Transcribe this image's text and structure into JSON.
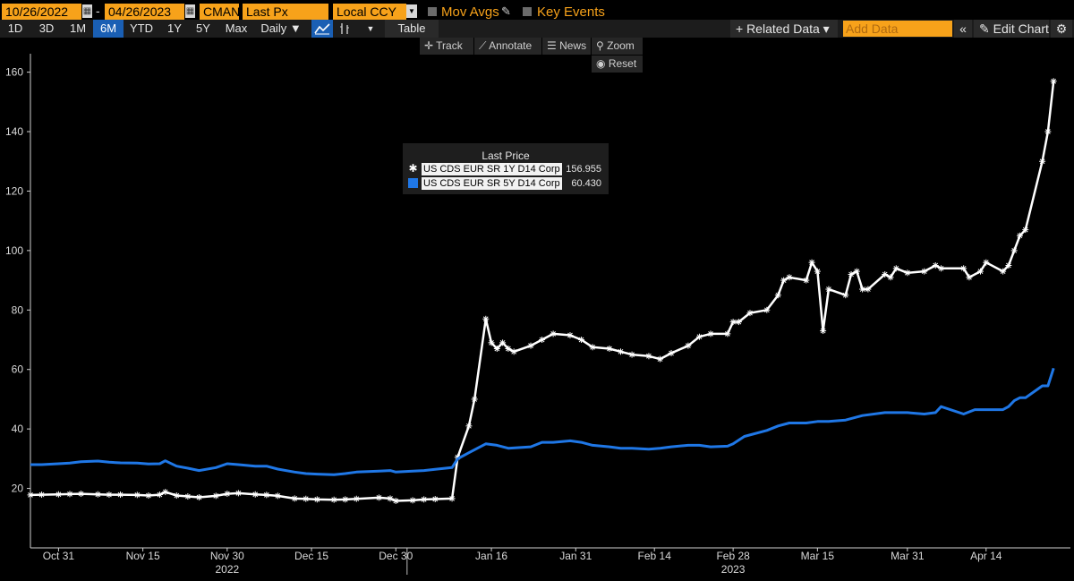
{
  "toolbar": {
    "start_date": "10/26/2022",
    "date_separator": "-",
    "end_date": "04/26/2023",
    "field_cman": "CMAN",
    "field_price": "Last Px",
    "currency": "Local CCY",
    "mov_avgs": "Mov Avgs",
    "key_events": "Key Events"
  },
  "range_buttons": [
    "1D",
    "3D",
    "1M",
    "6M",
    "YTD",
    "1Y",
    "5Y",
    "Max"
  ],
  "active_range": "6M",
  "frequency": "Daily ▼",
  "table_label": "Table",
  "right_toolbar": {
    "related_data": "+ Related Data ▾",
    "add_data_placeholder": "Add Data",
    "collapse": "«",
    "edit_chart": "✎ Edit Chart"
  },
  "chart_tools": {
    "track": "Track",
    "annotate": "Annotate",
    "news": "News",
    "zoom": "Zoom",
    "reset": "Reset"
  },
  "colors": {
    "accent": "#f7a21a",
    "series_1": "#ffffff",
    "series_2": "#1f77e6",
    "background": "#000000",
    "active_button": "#1a5fb4"
  },
  "chart_data": {
    "type": "line",
    "legend_title": "Last Price",
    "legend_position": "top-center",
    "ylim": [
      0,
      165
    ],
    "y_ticks": [
      20,
      40,
      60,
      80,
      100,
      120,
      140,
      160
    ],
    "x_ticks": [
      {
        "date": "2022-10-31",
        "label": "Oct 31"
      },
      {
        "date": "2022-11-15",
        "label": "Nov 15"
      },
      {
        "date": "2022-11-30",
        "label": "Nov 30"
      },
      {
        "date": "2022-12-15",
        "label": "Dec 15"
      },
      {
        "date": "2022-12-30",
        "label": "Dec 30"
      },
      {
        "date": "2023-01-16",
        "label": "Jan 16"
      },
      {
        "date": "2023-01-31",
        "label": "Jan 31"
      },
      {
        "date": "2023-02-14",
        "label": "Feb 14"
      },
      {
        "date": "2023-02-28",
        "label": "Feb 28"
      },
      {
        "date": "2023-03-15",
        "label": "Mar 15"
      },
      {
        "date": "2023-03-31",
        "label": "Mar 31"
      },
      {
        "date": "2023-04-14",
        "label": "Apr 14"
      }
    ],
    "x_year_labels": [
      {
        "date": "2022-11-30",
        "label": "2022"
      },
      {
        "date": "2023-02-28",
        "label": "2023"
      }
    ],
    "x_range": [
      "2022-10-26",
      "2023-04-29"
    ],
    "year_boundary": "2023-01-01",
    "series": [
      {
        "name": "US CDS EUR SR 1Y D14 Corp",
        "last_value": "156.955",
        "marker": "asterisk",
        "color": "#ffffff",
        "points": [
          [
            "2022-10-26",
            17.8
          ],
          [
            "2022-10-28",
            17.9
          ],
          [
            "2022-10-31",
            18.0
          ],
          [
            "2022-11-02",
            18.1
          ],
          [
            "2022-11-04",
            18.2
          ],
          [
            "2022-11-07",
            18.0
          ],
          [
            "2022-11-09",
            17.9
          ],
          [
            "2022-11-11",
            17.9
          ],
          [
            "2022-11-14",
            17.8
          ],
          [
            "2022-11-16",
            17.6
          ],
          [
            "2022-11-18",
            17.9
          ],
          [
            "2022-11-19",
            18.8
          ],
          [
            "2022-11-21",
            17.6
          ],
          [
            "2022-11-23",
            17.3
          ],
          [
            "2022-11-25",
            17.0
          ],
          [
            "2022-11-28",
            17.5
          ],
          [
            "2022-11-30",
            18.2
          ],
          [
            "2022-12-02",
            18.4
          ],
          [
            "2022-12-05",
            18.0
          ],
          [
            "2022-12-07",
            17.8
          ],
          [
            "2022-12-09",
            17.5
          ],
          [
            "2022-12-12",
            16.6
          ],
          [
            "2022-12-14",
            16.5
          ],
          [
            "2022-12-16",
            16.3
          ],
          [
            "2022-12-19",
            16.2
          ],
          [
            "2022-12-21",
            16.3
          ],
          [
            "2022-12-23",
            16.5
          ],
          [
            "2022-12-27",
            16.9
          ],
          [
            "2022-12-29",
            16.6
          ],
          [
            "2022-12-30",
            15.8
          ],
          [
            "2023-01-02",
            16.0
          ],
          [
            "2023-01-04",
            16.3
          ],
          [
            "2023-01-06",
            16.4
          ],
          [
            "2023-01-09",
            16.6
          ],
          [
            "2023-01-10",
            30.5
          ],
          [
            "2023-01-12",
            41.0
          ],
          [
            "2023-01-13",
            50.0
          ],
          [
            "2023-01-15",
            77.0
          ],
          [
            "2023-01-16",
            69.0
          ],
          [
            "2023-01-17",
            67.0
          ],
          [
            "2023-01-18",
            69.0
          ],
          [
            "2023-01-19",
            67.0
          ],
          [
            "2023-01-20",
            66.0
          ],
          [
            "2023-01-23",
            68.0
          ],
          [
            "2023-01-25",
            70.0
          ],
          [
            "2023-01-27",
            72.0
          ],
          [
            "2023-01-30",
            71.5
          ],
          [
            "2023-02-01",
            70.0
          ],
          [
            "2023-02-03",
            67.5
          ],
          [
            "2023-02-06",
            67.0
          ],
          [
            "2023-02-08",
            66.0
          ],
          [
            "2023-02-10",
            65.0
          ],
          [
            "2023-02-13",
            64.5
          ],
          [
            "2023-02-15",
            63.5
          ],
          [
            "2023-02-17",
            65.5
          ],
          [
            "2023-02-20",
            68.0
          ],
          [
            "2023-02-22",
            71.0
          ],
          [
            "2023-02-24",
            72.0
          ],
          [
            "2023-02-27",
            72.0
          ],
          [
            "2023-02-28",
            76.0
          ],
          [
            "2023-03-01",
            76.0
          ],
          [
            "2023-03-03",
            79.0
          ],
          [
            "2023-03-06",
            80.0
          ],
          [
            "2023-03-08",
            85.0
          ],
          [
            "2023-03-09",
            90.0
          ],
          [
            "2023-03-10",
            91.0
          ],
          [
            "2023-03-13",
            90.0
          ],
          [
            "2023-03-14",
            96.0
          ],
          [
            "2023-03-15",
            93.0
          ],
          [
            "2023-03-16",
            73.0
          ],
          [
            "2023-03-17",
            87.0
          ],
          [
            "2023-03-20",
            85.0
          ],
          [
            "2023-03-21",
            92.0
          ],
          [
            "2023-03-22",
            93.0
          ],
          [
            "2023-03-23",
            87.0
          ],
          [
            "2023-03-24",
            87.0
          ],
          [
            "2023-03-27",
            92.0
          ],
          [
            "2023-03-28",
            91.0
          ],
          [
            "2023-03-29",
            94.0
          ],
          [
            "2023-03-31",
            92.5
          ],
          [
            "2023-04-03",
            93.0
          ],
          [
            "2023-04-05",
            95.0
          ],
          [
            "2023-04-06",
            94.0
          ],
          [
            "2023-04-10",
            94.0
          ],
          [
            "2023-04-11",
            91.0
          ],
          [
            "2023-04-13",
            93.0
          ],
          [
            "2023-04-14",
            96.0
          ],
          [
            "2023-04-17",
            93.0
          ],
          [
            "2023-04-18",
            95.0
          ],
          [
            "2023-04-19",
            100.0
          ],
          [
            "2023-04-20",
            105.0
          ],
          [
            "2023-04-21",
            107.0
          ],
          [
            "2023-04-24",
            130.0
          ],
          [
            "2023-04-25",
            140.0
          ],
          [
            "2023-04-26",
            156.955
          ]
        ]
      },
      {
        "name": "US CDS EUR SR 5Y D14 Corp",
        "last_value": "60.430",
        "marker": "none",
        "color": "#1f77e6",
        "points": [
          [
            "2022-10-26",
            28.0
          ],
          [
            "2022-10-28",
            28.0
          ],
          [
            "2022-10-31",
            28.3
          ],
          [
            "2022-11-02",
            28.5
          ],
          [
            "2022-11-04",
            29.0
          ],
          [
            "2022-11-07",
            29.2
          ],
          [
            "2022-11-09",
            28.8
          ],
          [
            "2022-11-11",
            28.6
          ],
          [
            "2022-11-14",
            28.5
          ],
          [
            "2022-11-16",
            28.2
          ],
          [
            "2022-11-18",
            28.3
          ],
          [
            "2022-11-19",
            29.3
          ],
          [
            "2022-11-21",
            27.5
          ],
          [
            "2022-11-23",
            26.8
          ],
          [
            "2022-11-25",
            26.0
          ],
          [
            "2022-11-28",
            27.0
          ],
          [
            "2022-11-30",
            28.3
          ],
          [
            "2022-12-02",
            28.0
          ],
          [
            "2022-12-05",
            27.5
          ],
          [
            "2022-12-07",
            27.5
          ],
          [
            "2022-12-09",
            26.5
          ],
          [
            "2022-12-12",
            25.5
          ],
          [
            "2022-12-14",
            25.0
          ],
          [
            "2022-12-16",
            24.8
          ],
          [
            "2022-12-19",
            24.6
          ],
          [
            "2022-12-21",
            25.0
          ],
          [
            "2022-12-23",
            25.5
          ],
          [
            "2022-12-27",
            25.8
          ],
          [
            "2022-12-29",
            26.0
          ],
          [
            "2022-12-30",
            25.5
          ],
          [
            "2023-01-02",
            25.8
          ],
          [
            "2023-01-04",
            26.0
          ],
          [
            "2023-01-06",
            26.4
          ],
          [
            "2023-01-09",
            27.0
          ],
          [
            "2023-01-10",
            30.0
          ],
          [
            "2023-01-12",
            32.0
          ],
          [
            "2023-01-15",
            35.0
          ],
          [
            "2023-01-17",
            34.5
          ],
          [
            "2023-01-19",
            33.5
          ],
          [
            "2023-01-23",
            34.0
          ],
          [
            "2023-01-25",
            35.5
          ],
          [
            "2023-01-27",
            35.5
          ],
          [
            "2023-01-30",
            36.0
          ],
          [
            "2023-02-01",
            35.5
          ],
          [
            "2023-02-03",
            34.5
          ],
          [
            "2023-02-06",
            34.0
          ],
          [
            "2023-02-08",
            33.5
          ],
          [
            "2023-02-10",
            33.5
          ],
          [
            "2023-02-13",
            33.2
          ],
          [
            "2023-02-15",
            33.5
          ],
          [
            "2023-02-17",
            34.0
          ],
          [
            "2023-02-20",
            34.5
          ],
          [
            "2023-02-22",
            34.5
          ],
          [
            "2023-02-24",
            34.0
          ],
          [
            "2023-02-27",
            34.2
          ],
          [
            "2023-02-28",
            35.0
          ],
          [
            "2023-03-02",
            37.5
          ],
          [
            "2023-03-06",
            39.5
          ],
          [
            "2023-03-08",
            41.0
          ],
          [
            "2023-03-10",
            42.0
          ],
          [
            "2023-03-13",
            42.0
          ],
          [
            "2023-03-15",
            42.5
          ],
          [
            "2023-03-17",
            42.5
          ],
          [
            "2023-03-20",
            43.0
          ],
          [
            "2023-03-23",
            44.5
          ],
          [
            "2023-03-27",
            45.5
          ],
          [
            "2023-03-29",
            45.5
          ],
          [
            "2023-03-31",
            45.5
          ],
          [
            "2023-04-03",
            45.0
          ],
          [
            "2023-04-05",
            45.5
          ],
          [
            "2023-04-06",
            47.5
          ],
          [
            "2023-04-10",
            45.0
          ],
          [
            "2023-04-12",
            46.5
          ],
          [
            "2023-04-14",
            46.5
          ],
          [
            "2023-04-17",
            46.5
          ],
          [
            "2023-04-18",
            47.5
          ],
          [
            "2023-04-19",
            49.5
          ],
          [
            "2023-04-20",
            50.5
          ],
          [
            "2023-04-21",
            50.5
          ],
          [
            "2023-04-24",
            54.5
          ],
          [
            "2023-04-25",
            54.5
          ],
          [
            "2023-04-26",
            60.43
          ]
        ]
      }
    ]
  }
}
